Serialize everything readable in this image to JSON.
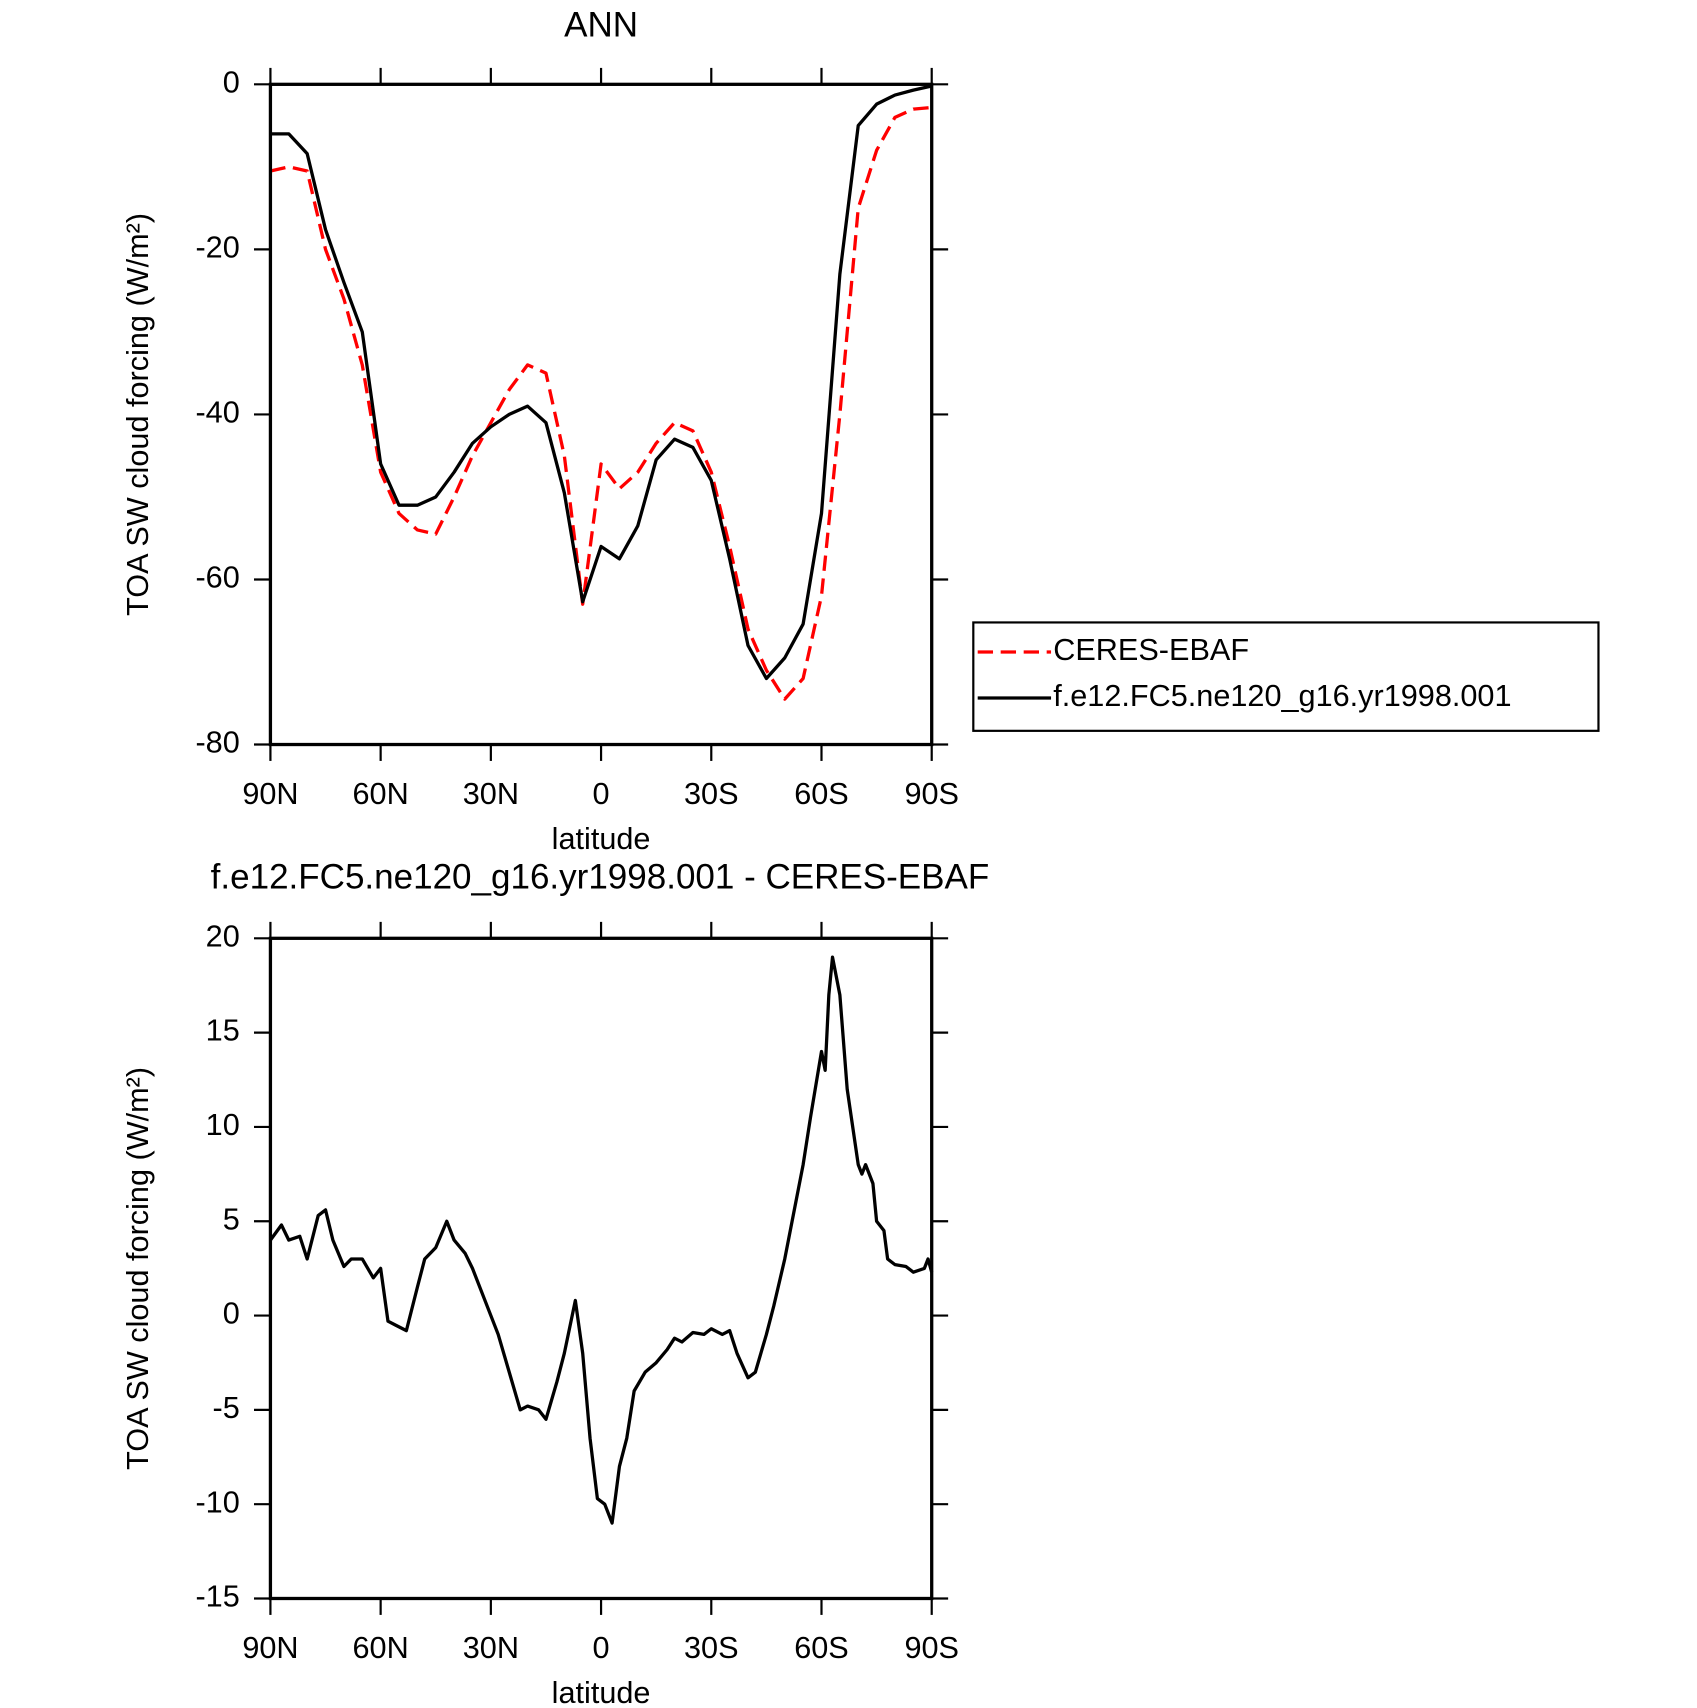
{
  "chart_data": [
    {
      "type": "line",
      "title": "ANN",
      "xlabel": "latitude",
      "ylabel": "TOA SW cloud forcing (W/m²)",
      "x": [
        90,
        85,
        80,
        75,
        70,
        65,
        60,
        55,
        50,
        45,
        40,
        35,
        30,
        25,
        20,
        15,
        10,
        5,
        0,
        -5,
        -10,
        -15,
        -20,
        -25,
        -30,
        -35,
        -40,
        -45,
        -50,
        -55,
        -60,
        -65,
        -70,
        -75,
        -80,
        -85,
        -90
      ],
      "series": [
        {
          "name": "CERES-EBAF",
          "color": "#ff0000",
          "style": "dashed",
          "values": [
            -10.5,
            -10,
            -10.5,
            -20,
            -26,
            -34,
            -47,
            -52,
            -54,
            -54.5,
            -50,
            -45,
            -41,
            -37,
            -34,
            -35,
            -45,
            -63,
            -46,
            -49,
            -47,
            -43.5,
            -41,
            -42,
            -47,
            -56,
            -66,
            -71,
            -74.5,
            -72,
            -62,
            -40,
            -15,
            -8,
            -4,
            -3,
            -2.8
          ]
        },
        {
          "name": "f.e12.FC5.ne120_g16.yr1998.001",
          "color": "#000000",
          "style": "solid",
          "values": [
            -6,
            -6,
            -8.4,
            -17.6,
            -24,
            -30,
            -46,
            -51,
            -51,
            -50,
            -47,
            -43.5,
            -41.5,
            -40,
            -39,
            -41,
            -49.5,
            -62.7,
            -56,
            -57.5,
            -53.5,
            -45.5,
            -43,
            -44,
            -48,
            -57.5,
            -68,
            -72,
            -69.5,
            -65.4,
            -52,
            -23,
            -5,
            -2.4,
            -1.3,
            -0.7,
            -0.2
          ]
        }
      ],
      "xlim": [
        90,
        -90
      ],
      "xticks": [
        {
          "value": 90,
          "label": "90N"
        },
        {
          "value": 60,
          "label": "60N"
        },
        {
          "value": 30,
          "label": "30N"
        },
        0,
        {
          "value": -30,
          "label": "30S"
        },
        {
          "value": -60,
          "label": "60S"
        },
        {
          "value": -90,
          "label": "90S"
        }
      ],
      "ylim": [
        -80,
        0
      ],
      "yticks": [
        -80,
        -60,
        -40,
        -20,
        0
      ],
      "legend": "right"
    },
    {
      "type": "line",
      "title": "f.e12.FC5.ne120_g16.yr1998.001 - CERES-EBAF",
      "xlabel": "latitude",
      "ylabel": "TOA SW cloud forcing (W/m²)",
      "x": [
        90,
        87,
        85,
        82,
        80,
        77,
        75,
        73,
        70,
        68,
        65,
        62,
        60,
        58,
        56,
        53,
        50,
        48,
        45,
        42,
        40,
        37,
        35,
        32,
        30,
        28,
        25,
        22,
        20,
        17,
        15,
        12,
        10,
        7,
        5,
        3,
        1,
        -1,
        -3,
        -5,
        -7,
        -9,
        -12,
        -15,
        -18,
        -20,
        -22,
        -25,
        -28,
        -30,
        -33,
        -35,
        -37,
        -40,
        -42,
        -45,
        -47,
        -50,
        -52,
        -55,
        -57,
        -60,
        -61,
        -62,
        -63,
        -65,
        -67,
        -70,
        -71,
        -72,
        -74,
        -75,
        -77,
        -78,
        -80,
        -83,
        -85,
        -88,
        -89,
        -90
      ],
      "series": [
        {
          "color": "#000000",
          "style": "solid",
          "values": [
            4,
            4.8,
            4,
            4.2,
            3,
            5.3,
            5.6,
            4,
            2.6,
            3,
            3,
            2,
            2.5,
            -0.3,
            -0.5,
            -0.8,
            1.5,
            3,
            3.6,
            5,
            4,
            3.3,
            2.5,
            1,
            0,
            -1,
            -3,
            -5,
            -4.8,
            -5,
            -5.5,
            -3.5,
            -2,
            0.8,
            -2,
            -6.5,
            -9.7,
            -10,
            -11,
            -8,
            -6.5,
            -4,
            -3,
            -2.5,
            -1.8,
            -1.2,
            -1.4,
            -0.9,
            -1,
            -0.7,
            -1,
            -0.8,
            -2,
            -3.3,
            -3,
            -1,
            0.5,
            3,
            5,
            8,
            10.5,
            14,
            13,
            17,
            19,
            17,
            12,
            8,
            7.5,
            8,
            7,
            5,
            4.5,
            3,
            2.7,
            2.6,
            2.3,
            2.5,
            3,
            2.3
          ]
        }
      ],
      "xlim": [
        90,
        -90
      ],
      "xticks": [
        {
          "value": 90,
          "label": "90N"
        },
        {
          "value": 60,
          "label": "60N"
        },
        {
          "value": 30,
          "label": "30N"
        },
        0,
        {
          "value": -30,
          "label": "30S"
        },
        {
          "value": -60,
          "label": "60S"
        },
        {
          "value": -90,
          "label": "90S"
        }
      ],
      "ylim": [
        -15,
        20
      ],
      "yticks": [
        -15,
        -10,
        -5,
        0,
        5,
        10,
        15,
        20
      ]
    }
  ]
}
